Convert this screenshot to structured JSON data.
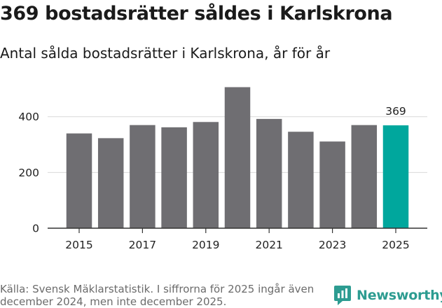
{
  "header": {
    "title": "369 bostadsrätter såldes i Karlskrona",
    "subtitle": "Antal sålda bostadsrätter i Karlskrona, år för år"
  },
  "footer": {
    "source": "Källa: Svensk Mäklarstatistik. I siffrorna för 2025 ingår även december 2024, men inte december 2025.",
    "brand": "Newsworthy"
  },
  "colors": {
    "bar": "#6f6e72",
    "highlight": "#00a79d",
    "grid": "#d9d9d9",
    "axis": "#333333",
    "brand": "#2d9c91"
  },
  "chart_data": {
    "type": "bar",
    "title": "369 bostadsrätter såldes i Karlskrona",
    "subtitle": "Antal sålda bostadsrätter i Karlskrona, år för år",
    "xlabel": "",
    "ylabel": "",
    "categories": [
      "2015",
      "2016",
      "2017",
      "2018",
      "2019",
      "2020",
      "2021",
      "2022",
      "2023",
      "2024",
      "2025"
    ],
    "values": [
      340,
      323,
      370,
      362,
      381,
      506,
      392,
      346,
      311,
      370,
      369
    ],
    "x_tick_labels": [
      "2015",
      "2017",
      "2019",
      "2021",
      "2023",
      "2025"
    ],
    "y_ticks": [
      0,
      200,
      400
    ],
    "ylim": [
      0,
      560
    ],
    "grid": true,
    "highlight_category": "2025",
    "data_labels": [
      {
        "category": "2025",
        "text": "369"
      }
    ]
  }
}
